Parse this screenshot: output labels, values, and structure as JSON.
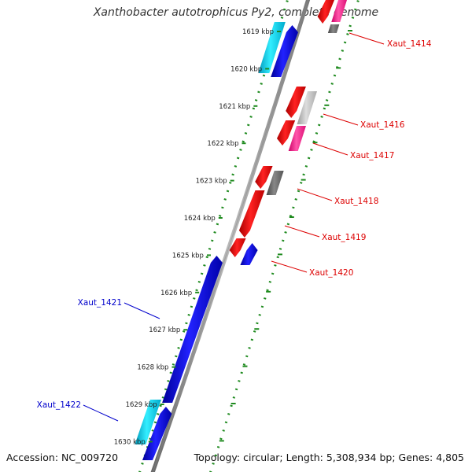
{
  "title": "Xanthobacter autotrophicus Py2, complete genome",
  "footer": {
    "accession": "Accession: NC_009720",
    "stats": "Topology: circular; Length: 5,308,934 bp; Genes: 4,805"
  },
  "ticks": [
    {
      "label": "1619 kbp"
    },
    {
      "label": "1620 kbp"
    },
    {
      "label": "1621 kbp"
    },
    {
      "label": "1622 kbp"
    },
    {
      "label": "1623 kbp"
    },
    {
      "label": "1624 kbp"
    },
    {
      "label": "1625 kbp"
    },
    {
      "label": "1626 kbp"
    },
    {
      "label": "1627 kbp"
    },
    {
      "label": "1628 kbp"
    },
    {
      "label": "1629 kbp"
    },
    {
      "label": "1630 kbp"
    }
  ],
  "gene_labels": [
    {
      "id": "Xaut_1414",
      "color": "#dd0000"
    },
    {
      "id": "Xaut_1416",
      "color": "#dd0000"
    },
    {
      "id": "Xaut_1417",
      "color": "#dd0000"
    },
    {
      "id": "Xaut_1418",
      "color": "#dd0000"
    },
    {
      "id": "Xaut_1419",
      "color": "#dd0000"
    },
    {
      "id": "Xaut_1420",
      "color": "#dd0000"
    },
    {
      "id": "Xaut_1421",
      "color": "#0000cc"
    },
    {
      "id": "Xaut_1422",
      "color": "#0000cc"
    }
  ],
  "colors": {
    "backbone": "#8a8a8a",
    "ruler": "#1e8a1e",
    "forward_blue": "#0000ee",
    "cyan": "#00ccee",
    "red": "#ee0000",
    "magenta": "#ff2299",
    "gray": "#666666",
    "light_gray": "#bbbbbb"
  }
}
